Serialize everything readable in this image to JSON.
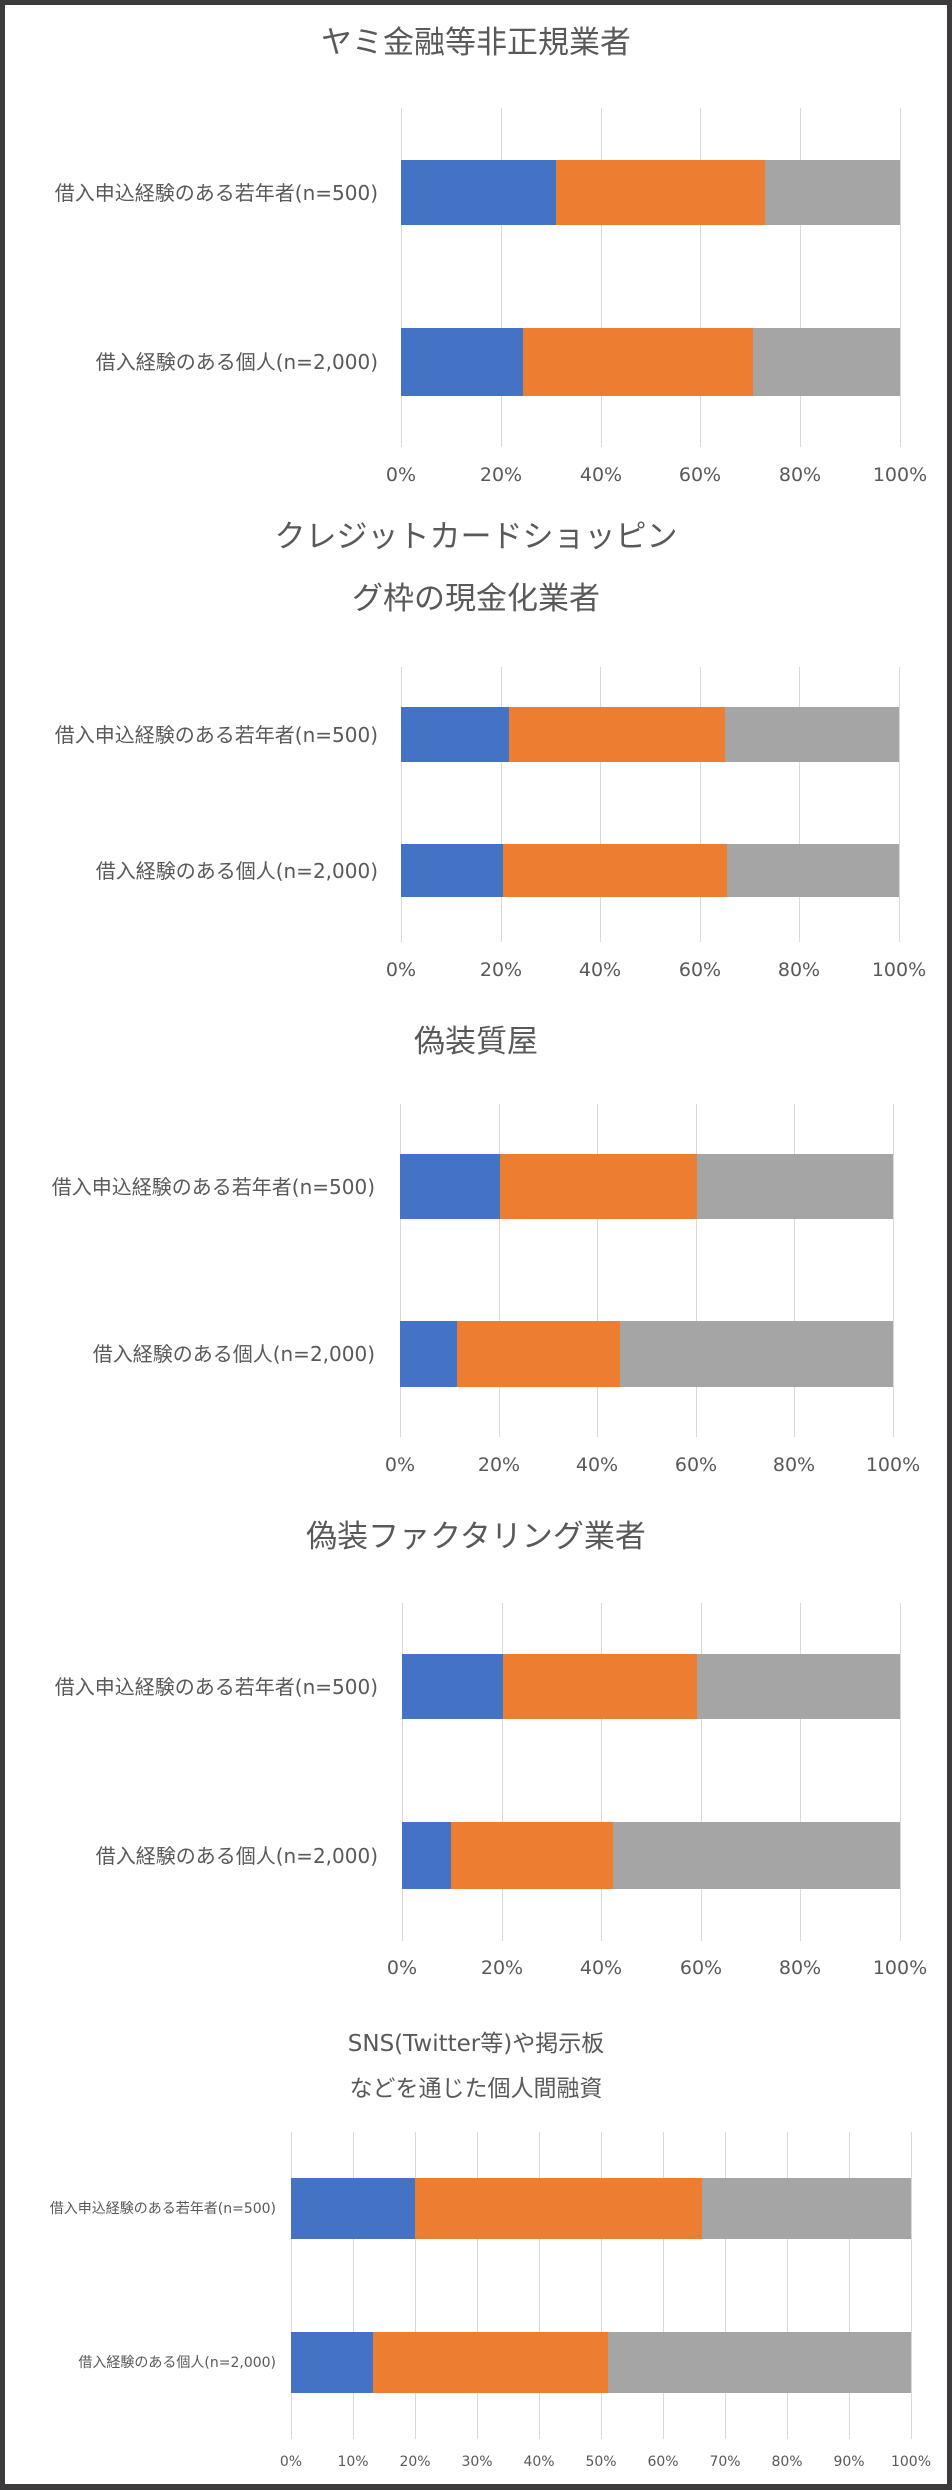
{
  "colors": {
    "frame": "#3d3a3b",
    "background": "#ffffff",
    "series": [
      "#4472c4",
      "#ed7d31",
      "#a5a5a5"
    ],
    "gridline": "#d9d9d9",
    "text": "#595959"
  },
  "chart_data": [
    {
      "type": "bar",
      "orientation": "horizontal",
      "stacked": "percent",
      "title": "ヤミ金融等非正規業者",
      "categories": [
        "借入申込経験のある若年者(n=500)",
        "借入経験のある個人(n=2,000)"
      ],
      "series": [
        {
          "name": "series1",
          "color": "#4472c4",
          "values": [
            31,
            24.5
          ]
        },
        {
          "name": "series2",
          "color": "#ed7d31",
          "values": [
            42,
            46
          ]
        },
        {
          "name": "series3",
          "color": "#a5a5a5",
          "values": [
            27,
            29.5
          ]
        }
      ],
      "xticks": [
        "0%",
        "20%",
        "40%",
        "60%",
        "80%",
        "100%"
      ],
      "xlim": [
        0,
        100
      ],
      "grid": true,
      "legend": "none"
    },
    {
      "type": "bar",
      "orientation": "horizontal",
      "stacked": "percent",
      "title": "クレジットカードショッピング枠の現金化業者",
      "categories": [
        "借入申込経験のある若年者(n=500)",
        "借入経験のある個人(n=2,000)"
      ],
      "series": [
        {
          "name": "series1",
          "color": "#4472c4",
          "values": [
            21.7,
            20.5
          ]
        },
        {
          "name": "series2",
          "color": "#ed7d31",
          "values": [
            43.3,
            44.9
          ]
        },
        {
          "name": "series3",
          "color": "#a5a5a5",
          "values": [
            35,
            34.6
          ]
        }
      ],
      "xticks": [
        "0%",
        "20%",
        "40%",
        "60%",
        "80%",
        "100%"
      ],
      "xlim": [
        0,
        100
      ],
      "grid": true,
      "legend": "none"
    },
    {
      "type": "bar",
      "orientation": "horizontal",
      "stacked": "percent",
      "title": "偽装質屋",
      "categories": [
        "借入申込経験のある若年者(n=500)",
        "借入経験のある個人(n=2,000)"
      ],
      "series": [
        {
          "name": "series1",
          "color": "#4472c4",
          "values": [
            20.2,
            11.6
          ]
        },
        {
          "name": "series2",
          "color": "#ed7d31",
          "values": [
            40.1,
            33.1
          ]
        },
        {
          "name": "series3",
          "color": "#a5a5a5",
          "values": [
            39.7,
            55.3
          ]
        }
      ],
      "xticks": [
        "0%",
        "20%",
        "40%",
        "60%",
        "80%",
        "100%"
      ],
      "xlim": [
        0,
        100
      ],
      "grid": true,
      "legend": "none"
    },
    {
      "type": "bar",
      "orientation": "horizontal",
      "stacked": "percent",
      "title": "偽装ファクタリング業者",
      "categories": [
        "借入申込経験のある若年者(n=500)",
        "借入経験のある個人(n=2,000)"
      ],
      "series": [
        {
          "name": "series1",
          "color": "#4472c4",
          "values": [
            20.2,
            9.8
          ]
        },
        {
          "name": "series2",
          "color": "#ed7d31",
          "values": [
            39.1,
            32.6
          ]
        },
        {
          "name": "series3",
          "color": "#a5a5a5",
          "values": [
            40.7,
            57.6
          ]
        }
      ],
      "xticks": [
        "0%",
        "20%",
        "40%",
        "60%",
        "80%",
        "100%"
      ],
      "xlim": [
        0,
        100
      ],
      "grid": true,
      "legend": "none"
    },
    {
      "type": "bar",
      "orientation": "horizontal",
      "stacked": "percent",
      "title": "SNS(Twitter等)や掲示板などを通じた個人間融資",
      "categories": [
        "借入申込経験のある若年者(n=500)",
        "借入経験のある個人(n=2,000)"
      ],
      "series": [
        {
          "name": "series1",
          "color": "#4472c4",
          "values": [
            20,
            13.2
          ]
        },
        {
          "name": "series2",
          "color": "#ed7d31",
          "values": [
            46.3,
            37.9
          ]
        },
        {
          "name": "series3",
          "color": "#a5a5a5",
          "values": [
            33.7,
            48.9
          ]
        }
      ],
      "xticks": [
        "0%",
        "10%",
        "20%",
        "30%",
        "40%",
        "50%",
        "60%",
        "70%",
        "80%",
        "90%",
        "100%"
      ],
      "xlim": [
        0,
        100
      ],
      "grid": true,
      "legend": "none"
    }
  ],
  "charts": [
    {
      "title_lines": [
        "ヤミ金融等非正規業者"
      ],
      "labels": [
        "借入申込経験のある若年者(n=500)",
        "借入経験のある個人(n=2,000)"
      ],
      "ticks": [
        "0%",
        "20%",
        "40%",
        "60%",
        "80%",
        "100%"
      ]
    },
    {
      "title_lines": [
        "クレジットカードショッピン",
        "グ枠の現金化業者"
      ],
      "labels": [
        "借入申込経験のある若年者(n=500)",
        "借入経験のある個人(n=2,000)"
      ],
      "ticks": [
        "0%",
        "20%",
        "40%",
        "60%",
        "80%",
        "100%"
      ]
    },
    {
      "title_lines": [
        "偽装質屋"
      ],
      "labels": [
        "借入申込経験のある若年者(n=500)",
        "借入経験のある個人(n=2,000)"
      ],
      "ticks": [
        "0%",
        "20%",
        "40%",
        "60%",
        "80%",
        "100%"
      ]
    },
    {
      "title_lines": [
        "偽装ファクタリング業者"
      ],
      "labels": [
        "借入申込経験のある若年者(n=500)",
        "借入経験のある個人(n=2,000)"
      ],
      "ticks": [
        "0%",
        "20%",
        "40%",
        "60%",
        "80%",
        "100%"
      ]
    },
    {
      "title_lines": [
        "SNS(Twitter等)や掲示板",
        "などを通じた個人間融資"
      ],
      "labels": [
        "借入申込経験のある若年者(n=500)",
        "借入経験のある個人(n=2,000)"
      ],
      "ticks": [
        "0%",
        "10%",
        "20%",
        "30%",
        "40%",
        "50%",
        "60%",
        "70%",
        "80%",
        "90%",
        "100%"
      ]
    }
  ]
}
